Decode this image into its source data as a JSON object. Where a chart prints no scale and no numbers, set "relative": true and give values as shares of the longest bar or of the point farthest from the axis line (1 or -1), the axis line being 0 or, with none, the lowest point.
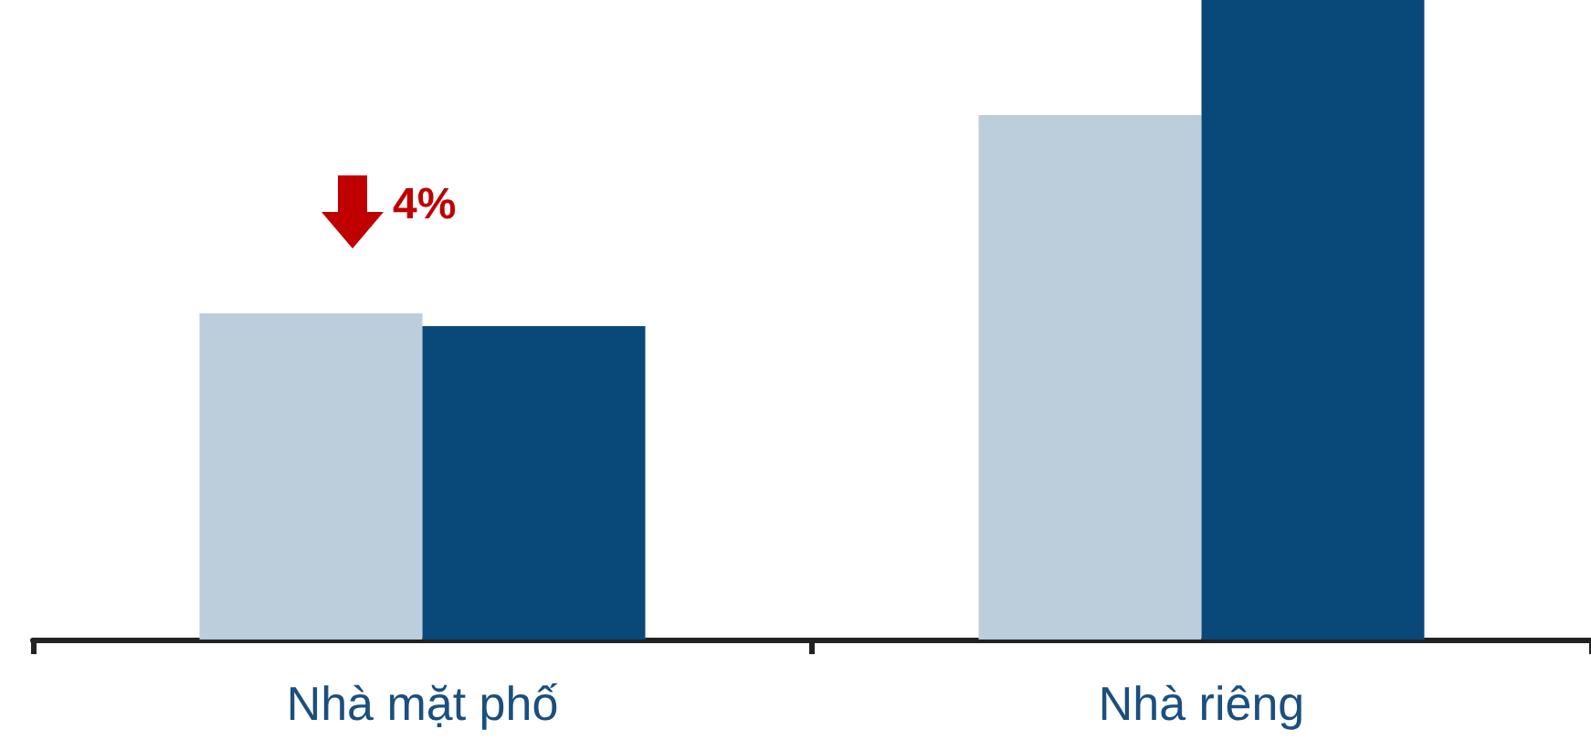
{
  "chart_data": {
    "type": "bar",
    "relative": true,
    "categories": [
      "Nhà mặt phố",
      "Nhà riêng"
    ],
    "series": [
      {
        "color": "#bccddb",
        "values": [
          0.51,
          0.82
        ]
      },
      {
        "color": "#08497a",
        "values": [
          0.49,
          1
        ]
      }
    ],
    "annotations": [
      "4%"
    ]
  }
}
